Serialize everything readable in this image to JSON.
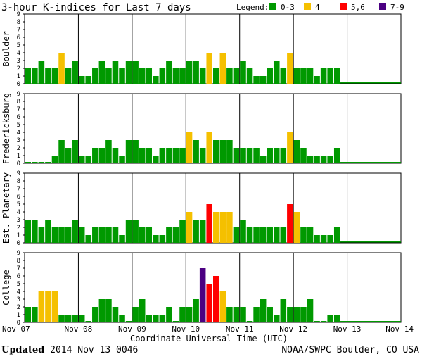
{
  "chart_data": {
    "type": "bar",
    "title": "3-hour K-indices for Last 7 days",
    "legend": {
      "label": "Legend:",
      "items": [
        {
          "label": "0-3",
          "color": "#009900"
        },
        {
          "label": "4",
          "color": "#f5c000"
        },
        {
          "label": "5,6",
          "color": "#ff0000"
        },
        {
          "label": "7-9",
          "color": "#4b0082"
        }
      ]
    },
    "xlabel": "Coordinate Universal Time (UTC)",
    "x_ticks": [
      "Nov 07",
      "Nov 08",
      "Nov 09",
      "Nov 10",
      "Nov 11",
      "Nov 12",
      "Nov 13",
      "Nov 14"
    ],
    "ylim": [
      0,
      9
    ],
    "y_ticks": [
      "0",
      "1",
      "2",
      "3",
      "4",
      "5",
      "6",
      "7",
      "8",
      "9"
    ],
    "bins_per_day": 8,
    "series": [
      {
        "name": "Boulder",
        "values": [
          2,
          2,
          3,
          2,
          2,
          4,
          2,
          3,
          1,
          1,
          2,
          3,
          2,
          3,
          2,
          3,
          3,
          2,
          2,
          1,
          2,
          3,
          2,
          2,
          3,
          3,
          2,
          4,
          2,
          4,
          2,
          2,
          3,
          2,
          1,
          1,
          2,
          3,
          2,
          4,
          2,
          2,
          2,
          1,
          2,
          2,
          2
        ]
      },
      {
        "name": "Fredericksburg",
        "values": [
          0,
          0,
          0,
          0,
          1,
          3,
          2,
          3,
          1,
          1,
          2,
          2,
          3,
          2,
          1,
          3,
          3,
          2,
          2,
          1,
          2,
          2,
          2,
          2,
          4,
          3,
          2,
          4,
          3,
          3,
          3,
          2,
          2,
          2,
          2,
          1,
          2,
          2,
          2,
          4,
          3,
          2,
          1,
          1,
          1,
          1,
          2
        ]
      },
      {
        "name": "Est. Planetary",
        "values": [
          3,
          3,
          2,
          3,
          2,
          2,
          2,
          3,
          2,
          1,
          2,
          2,
          2,
          2,
          1,
          3,
          3,
          2,
          2,
          1,
          1,
          2,
          2,
          3,
          4,
          3,
          3,
          5,
          4,
          4,
          4,
          2,
          3,
          2,
          2,
          2,
          2,
          2,
          2,
          5,
          4,
          2,
          2,
          1,
          1,
          1,
          2
        ]
      },
      {
        "name": "College",
        "values": [
          2,
          2,
          4,
          4,
          4,
          1,
          1,
          1,
          1,
          0,
          2,
          3,
          3,
          2,
          1,
          0,
          2,
          3,
          1,
          1,
          1,
          2,
          0,
          2,
          2,
          3,
          7,
          5,
          6,
          4,
          2,
          2,
          2,
          0,
          2,
          3,
          2,
          1,
          3,
          2,
          2,
          2,
          3,
          0,
          0,
          1,
          1
        ]
      }
    ]
  },
  "footer": {
    "updated_label": "Updated",
    "updated_time": "2014 Nov 13 0046",
    "source": "NOAA/SWPC Boulder, CO USA"
  }
}
